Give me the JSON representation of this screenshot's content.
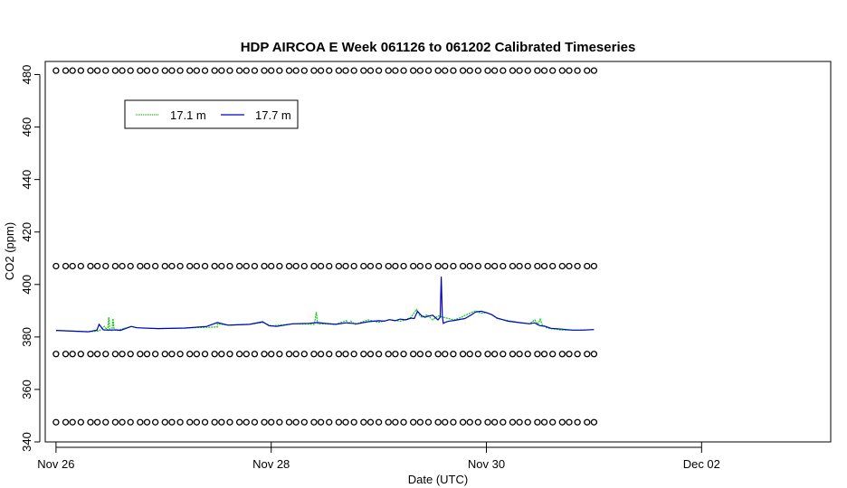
{
  "chart_data": {
    "type": "line",
    "title": "HDP AIRCOA E  Week 061126 to 061202  Calibrated Timeseries",
    "xlabel": "Date (UTC)",
    "ylabel": "CO2 (ppm)",
    "x_unit": "days",
    "xlim": [
      -0.1,
      7.2
    ],
    "ylim": [
      340,
      485
    ],
    "x_ticks": [
      {
        "value": 0,
        "label": "Nov 26"
      },
      {
        "value": 2,
        "label": "Nov 28"
      },
      {
        "value": 4,
        "label": "Nov 30"
      },
      {
        "value": 6,
        "label": "Dec 02"
      }
    ],
    "y_ticks": [
      340,
      360,
      380,
      400,
      420,
      440,
      460,
      480
    ],
    "legend": {
      "position": "top-left"
    },
    "series": [
      {
        "name": "17.1 m",
        "color": "#00cc00",
        "x": [
          0,
          0.3,
          0.4,
          0.45,
          0.47,
          0.48,
          0.49,
          0.5,
          0.52,
          0.53,
          0.54,
          0.56,
          0.7,
          0.75,
          0.95,
          1.2,
          1.5,
          1.5,
          1.6,
          1.8,
          1.92,
          2.0,
          2.2,
          2.4,
          2.42,
          2.43,
          2.44,
          2.46,
          2.6,
          2.7,
          2.72,
          2.74,
          2.78,
          2.8,
          2.9,
          3.0,
          3.1,
          3.2,
          3.22,
          3.3,
          3.35,
          3.38,
          3.4,
          3.42,
          3.45,
          3.5,
          3.55,
          3.6,
          3.7,
          3.75,
          3.8,
          3.9,
          3.95,
          4.0,
          4.05,
          4.1,
          4.3,
          4.4,
          4.45,
          4.48,
          4.5,
          4.52,
          4.54,
          4.56,
          4.6,
          4.7,
          4.85,
          5.0
        ],
        "y": [
          382.5,
          382,
          382.3,
          384,
          383,
          382.6,
          387.5,
          382.8,
          382.5,
          387,
          382.8,
          382.4,
          384,
          383.5,
          383.2,
          383.4,
          383.8,
          385,
          384.5,
          384.8,
          385.5,
          384.2,
          385,
          384.8,
          389.5,
          385.3,
          384.9,
          385,
          384.8,
          386.2,
          384.9,
          386,
          384.8,
          385.1,
          386.5,
          385.6,
          386.6,
          386,
          386.2,
          387.5,
          390.5,
          388.2,
          387.5,
          387.8,
          388.5,
          386.5,
          388,
          387.5,
          386.5,
          387.2,
          388.2,
          390,
          389,
          389.3,
          388.5,
          387,
          385.5,
          385,
          386.5,
          384.8,
          386.8,
          384.5,
          384.2,
          383.5,
          383.2,
          382.6,
          382.6,
          382.8
        ]
      },
      {
        "name": "17.7 m",
        "color": "#0000cc",
        "x": [
          0,
          0.3,
          0.38,
          0.4,
          0.44,
          0.5,
          0.56,
          0.6,
          0.7,
          0.75,
          0.95,
          1.2,
          1.4,
          1.5,
          1.6,
          1.8,
          1.92,
          1.98,
          2.05,
          2.2,
          2.35,
          2.43,
          2.5,
          2.6,
          2.7,
          2.75,
          2.8,
          2.9,
          3.0,
          3.05,
          3.1,
          3.15,
          3.2,
          3.25,
          3.3,
          3.33,
          3.36,
          3.4,
          3.43,
          3.45,
          3.5,
          3.55,
          3.57,
          3.58,
          3.59,
          3.6,
          3.62,
          3.65,
          3.7,
          3.8,
          3.85,
          3.9,
          3.95,
          4.0,
          4.05,
          4.1,
          4.2,
          4.3,
          4.4,
          4.45,
          4.48,
          4.5,
          4.55,
          4.6,
          4.7,
          4.8,
          4.9,
          5.0
        ],
        "y": [
          382.5,
          382,
          382.6,
          384.8,
          382.7,
          382.6,
          382.7,
          382.5,
          384,
          383.5,
          383.2,
          383.4,
          384,
          385.5,
          384.5,
          384.8,
          385.8,
          384.3,
          384,
          385,
          385.2,
          385.5,
          385.2,
          384.8,
          385.4,
          385.2,
          385,
          385.8,
          386.2,
          386,
          386.6,
          386.2,
          386.8,
          386.5,
          387.2,
          387,
          389.8,
          388,
          387.5,
          387.8,
          388.3,
          386.5,
          387.5,
          403,
          388,
          385.2,
          385.6,
          386,
          386.3,
          387,
          388.2,
          389.5,
          389.8,
          389.3,
          388.5,
          387.2,
          386,
          385.5,
          385,
          385.4,
          384.6,
          384.3,
          384,
          383.3,
          383,
          382.6,
          382.6,
          382.8
        ]
      }
    ],
    "marker_series": {
      "symbol": "open-circle",
      "color": "#000000",
      "y_levels": [
        481.5,
        407,
        373.5,
        347.5
      ]
    }
  }
}
